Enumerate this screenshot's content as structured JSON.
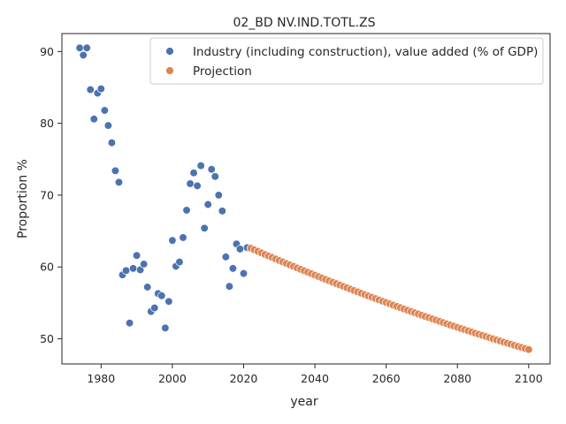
{
  "chart_data": {
    "type": "scatter",
    "title": "02_BD NV.IND.TOTL.ZS",
    "xlabel": "year",
    "ylabel": "Proportion %",
    "xlim": [
      1969,
      2106
    ],
    "ylim": [
      46.5,
      92.5
    ],
    "x_ticks": [
      1980,
      2000,
      2020,
      2040,
      2060,
      2080,
      2100
    ],
    "y_ticks": [
      50,
      60,
      70,
      80,
      90
    ],
    "grid": false,
    "legend_position": "top-right",
    "series": [
      {
        "name": "Industry (including construction), value added (% of GDP)",
        "color": "#4c72b0",
        "points": [
          [
            1974,
            90.5
          ],
          [
            1975,
            89.5
          ],
          [
            1976,
            90.5
          ],
          [
            1977,
            84.7
          ],
          [
            1978,
            80.6
          ],
          [
            1979,
            84.2
          ],
          [
            1980,
            84.8
          ],
          [
            1981,
            81.8
          ],
          [
            1982,
            79.7
          ],
          [
            1983,
            77.3
          ],
          [
            1984,
            73.4
          ],
          [
            1985,
            71.8
          ],
          [
            1986,
            58.9
          ],
          [
            1987,
            59.5
          ],
          [
            1988,
            52.2
          ],
          [
            1989,
            59.8
          ],
          [
            1990,
            61.6
          ],
          [
            1991,
            59.6
          ],
          [
            1992,
            60.4
          ],
          [
            1993,
            57.2
          ],
          [
            1994,
            53.8
          ],
          [
            1995,
            54.3
          ],
          [
            1996,
            56.3
          ],
          [
            1997,
            56.0
          ],
          [
            1998,
            51.5
          ],
          [
            1999,
            55.2
          ],
          [
            2000,
            63.7
          ],
          [
            2001,
            60.1
          ],
          [
            2002,
            60.7
          ],
          [
            2003,
            64.1
          ],
          [
            2004,
            67.9
          ],
          [
            2005,
            71.6
          ],
          [
            2006,
            73.1
          ],
          [
            2007,
            71.3
          ],
          [
            2008,
            74.1
          ],
          [
            2009,
            65.4
          ],
          [
            2010,
            68.7
          ],
          [
            2011,
            73.6
          ],
          [
            2012,
            72.6
          ],
          [
            2013,
            70.0
          ],
          [
            2014,
            67.8
          ],
          [
            2015,
            61.4
          ],
          [
            2016,
            57.3
          ],
          [
            2017,
            59.8
          ],
          [
            2018,
            63.2
          ],
          [
            2019,
            62.5
          ],
          [
            2020,
            59.1
          ],
          [
            2021,
            62.7
          ]
        ]
      },
      {
        "name": "Projection",
        "color": "#dd8452",
        "x_start": 2022,
        "x_end": 2100,
        "y_start": 62.6,
        "y_end": 48.5,
        "curvature": 0.00045
      }
    ]
  }
}
